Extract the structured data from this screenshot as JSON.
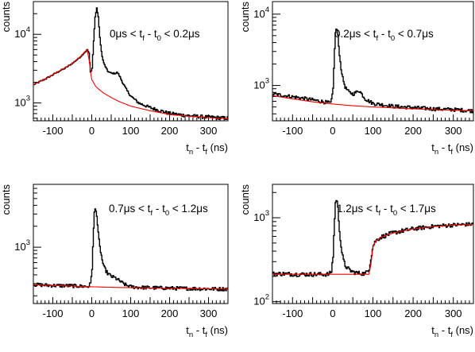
{
  "chart_data": [
    {
      "type": "line",
      "ylabel": "counts",
      "xlabel": "t_n - t_f (ns)",
      "yscale": "log",
      "xlim": [
        -150,
        350
      ],
      "ylim": [
        550,
        30000
      ],
      "x_ticks": [
        "-100",
        "0",
        "100",
        "200",
        "300"
      ],
      "y_ticks": [
        {
          "v": 1000,
          "exp": "3"
        },
        {
          "v": 10000,
          "exp": "4"
        }
      ],
      "annotation": "0μs < t_f - t_0 < 0.2μs",
      "series": [
        {
          "role": "data",
          "x": [
            -150,
            -130,
            -110,
            -90,
            -70,
            -50,
            -30,
            -20,
            -12,
            -8,
            -4,
            0,
            4,
            8,
            12,
            16,
            20,
            25,
            30,
            40,
            50,
            60,
            65,
            70,
            80,
            90,
            100,
            120,
            150,
            200,
            250,
            300,
            350
          ],
          "y": [
            1850,
            2100,
            2400,
            2800,
            3200,
            3800,
            4700,
            5400,
            6000,
            5300,
            2800,
            3200,
            8000,
            18000,
            24000,
            18000,
            9000,
            5000,
            3800,
            2900,
            2700,
            2700,
            2800,
            2500,
            1900,
            1500,
            1250,
            1000,
            850,
            700,
            650,
            620,
            600
          ]
        },
        {
          "role": "fit",
          "x": [
            -150,
            -130,
            -110,
            -90,
            -70,
            -50,
            -30,
            -20,
            -12,
            -6,
            -2,
            0,
            10,
            20,
            30,
            50,
            70,
            100,
            150,
            200,
            250,
            300,
            350
          ],
          "y": [
            1850,
            2100,
            2400,
            2800,
            3200,
            3800,
            4700,
            5400,
            6000,
            4000,
            2600,
            2200,
            1750,
            1550,
            1400,
            1200,
            1050,
            900,
            770,
            680,
            640,
            610,
            590
          ]
        }
      ]
    },
    {
      "type": "line",
      "ylabel": "counts",
      "xlabel": "t_n - t_f (ns)",
      "yscale": "log",
      "xlim": [
        -150,
        350
      ],
      "ylim": [
        320,
        15000
      ],
      "x_ticks": [
        "-100",
        "0",
        "100",
        "200",
        "300"
      ],
      "y_ticks": [
        {
          "v": 1000,
          "exp": "3"
        },
        {
          "v": 10000,
          "exp": "4"
        }
      ],
      "annotation": "0.2μs < t_f - t_0 < 0.7μs",
      "series": [
        {
          "role": "data",
          "x": [
            -150,
            -120,
            -90,
            -60,
            -30,
            -10,
            -5,
            0,
            3,
            6,
            9,
            12,
            15,
            20,
            25,
            30,
            40,
            50,
            60,
            65,
            70,
            80,
            90,
            100,
            120,
            150,
            200,
            250,
            300,
            350
          ],
          "y": [
            760,
            720,
            680,
            640,
            600,
            570,
            560,
            900,
            2500,
            5500,
            6500,
            5000,
            3000,
            1700,
            1200,
            950,
            800,
            760,
            820,
            850,
            780,
            650,
            600,
            560,
            540,
            510,
            490,
            470,
            460,
            440
          ]
        },
        {
          "role": "fit",
          "x": [
            -150,
            -100,
            -50,
            0,
            50,
            100,
            150,
            200,
            250,
            300,
            350
          ],
          "y": [
            720,
            650,
            590,
            550,
            520,
            500,
            485,
            470,
            460,
            450,
            440
          ]
        }
      ]
    },
    {
      "type": "line",
      "ylabel": "counts",
      "xlabel": "t_n - t_f (ns)",
      "yscale": "log",
      "xlim": [
        -150,
        350
      ],
      "ylim": [
        155,
        8000
      ],
      "x_ticks": [
        "-100",
        "0",
        "100",
        "200",
        "300"
      ],
      "y_ticks": [
        {
          "v": 1000,
          "exp": "3"
        }
      ],
      "annotation": "0.7μs < t_f - t_0 < 1.2μs",
      "series": [
        {
          "role": "data",
          "x": [
            -150,
            -120,
            -90,
            -60,
            -30,
            -10,
            -4,
            0,
            3,
            6,
            9,
            12,
            15,
            20,
            25,
            30,
            40,
            50,
            60,
            70,
            80,
            90,
            100,
            120,
            150,
            200,
            250,
            300,
            350
          ],
          "y": [
            290,
            285,
            280,
            280,
            275,
            272,
            300,
            500,
            1400,
            3200,
            3700,
            2800,
            1800,
            1000,
            700,
            520,
            420,
            380,
            360,
            330,
            300,
            280,
            270,
            265,
            262,
            258,
            255,
            252,
            250
          ]
        },
        {
          "role": "fit",
          "x": [
            -150,
            -100,
            -50,
            0,
            50,
            100,
            150,
            200,
            250,
            300,
            350
          ],
          "y": [
            290,
            282,
            276,
            270,
            265,
            262,
            259,
            256,
            254,
            252,
            250
          ]
        }
      ]
    },
    {
      "type": "line",
      "ylabel": "counts",
      "xlabel": "t_n - t_f (ns)",
      "yscale": "log",
      "xlim": [
        -150,
        350
      ],
      "ylim": [
        95,
        2500
      ],
      "x_ticks": [
        "-100",
        "0",
        "100",
        "200",
        "300"
      ],
      "y_ticks": [
        {
          "v": 100,
          "exp": "2"
        },
        {
          "v": 1000,
          "exp": "3"
        }
      ],
      "annotation": "1.2μs < t_f - t_0 < 1.7μs",
      "series": [
        {
          "role": "data",
          "x": [
            -150,
            -120,
            -90,
            -60,
            -30,
            -10,
            -4,
            0,
            3,
            6,
            9,
            12,
            15,
            20,
            25,
            30,
            40,
            50,
            60,
            70,
            80,
            90,
            95,
            100,
            105,
            110,
            120,
            140,
            160,
            200,
            250,
            300,
            350
          ],
          "y": [
            215,
            215,
            212,
            212,
            212,
            212,
            230,
            350,
            800,
            1500,
            1700,
            1300,
            800,
            450,
            320,
            270,
            240,
            225,
            220,
            218,
            215,
            250,
            350,
            470,
            520,
            550,
            590,
            640,
            680,
            740,
            790,
            820,
            840
          ]
        },
        {
          "role": "fit",
          "x": [
            -150,
            -100,
            -50,
            0,
            50,
            90,
            95,
            100,
            105,
            110,
            120,
            140,
            160,
            200,
            250,
            300,
            350
          ],
          "y": [
            212,
            212,
            212,
            212,
            212,
            212,
            280,
            450,
            510,
            545,
            585,
            635,
            675,
            735,
            785,
            815,
            835
          ]
        }
      ]
    }
  ]
}
